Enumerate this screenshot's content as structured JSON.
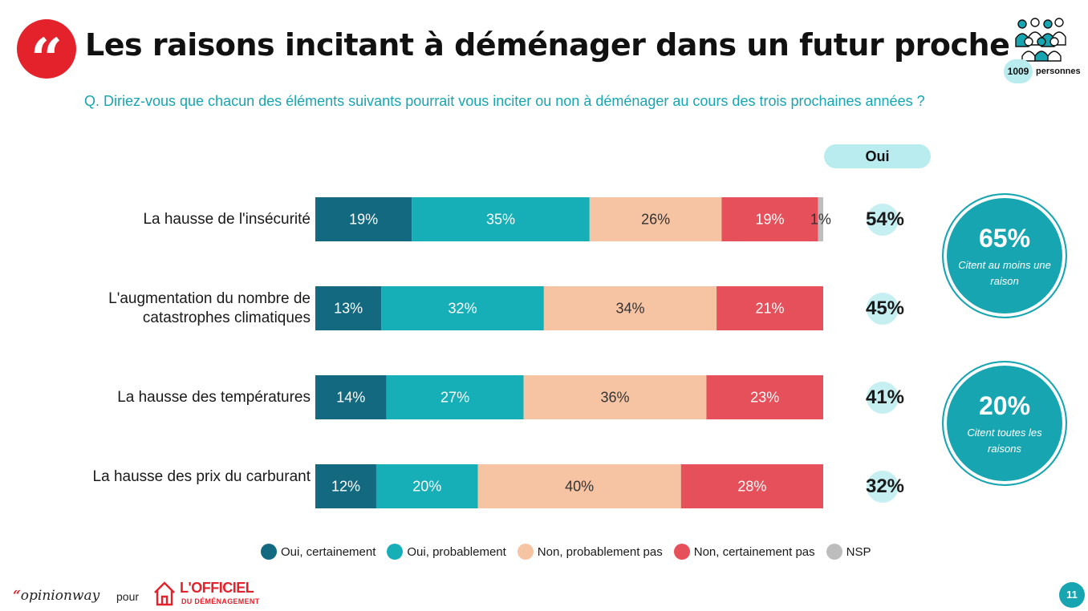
{
  "header": {
    "title": "Les raisons incitant à déménager dans un futur proche",
    "question": "Q. Diriez-vous que chacun des éléments suivants pourrait vous inciter ou non à déménager au cours des trois prochaines années ?",
    "quote_glyph": "“",
    "sample_count": "1009",
    "sample_unit": "personnes"
  },
  "oui_header": "Oui",
  "summary": [
    {
      "value": "65%",
      "label": "Citent au moins une raison"
    },
    {
      "value": "20%",
      "label": "Citent toutes les raisons"
    }
  ],
  "footer": {
    "brand_quote": "“",
    "brand": "opinionway",
    "pour": "pour",
    "partner": "L'OFFICIEL",
    "partner_sub": "DU DÉMÉNAGEMENT",
    "page": "11"
  },
  "colors": {
    "oui_certainement": "#136a80",
    "oui_probablement": "#17afb7",
    "non_probablement_pas": "#f6c3a3",
    "non_certainement_pas": "#e5505a",
    "nsp": "#bdbdbd",
    "accent": "#17a6b1",
    "brand_red": "#e3222b"
  },
  "chart_data": {
    "type": "bar",
    "orientation": "horizontal",
    "stacked": true,
    "categories": [
      "La hausse de l'insécurité",
      "L'augmentation du nombre de catastrophes climatiques",
      "La hausse des températures",
      "La hausse des prix du carburant"
    ],
    "series": [
      {
        "name": "Oui, certainement",
        "values": [
          19,
          13,
          14,
          12
        ],
        "labels": [
          "19%",
          "13%",
          "14%",
          "12%"
        ]
      },
      {
        "name": "Oui, probablement",
        "values": [
          35,
          32,
          27,
          20
        ],
        "labels": [
          "35%",
          "32%",
          "27%",
          "20%"
        ]
      },
      {
        "name": "Non, probablement pas",
        "values": [
          26,
          34,
          36,
          40
        ],
        "labels": [
          "26%",
          "34%",
          "36%",
          "40%"
        ]
      },
      {
        "name": "Non, certainement pas",
        "values": [
          19,
          21,
          23,
          28
        ],
        "labels": [
          "19%",
          "21%",
          "23%",
          "28%"
        ]
      },
      {
        "name": "NSP",
        "values": [
          1,
          0,
          0,
          0
        ],
        "labels": [
          "1%",
          "",
          "",
          ""
        ]
      }
    ],
    "oui_totals": [
      "54%",
      "45%",
      "41%",
      "32%"
    ],
    "xlim": [
      0,
      100
    ],
    "legend_position": "bottom",
    "grid": false
  }
}
